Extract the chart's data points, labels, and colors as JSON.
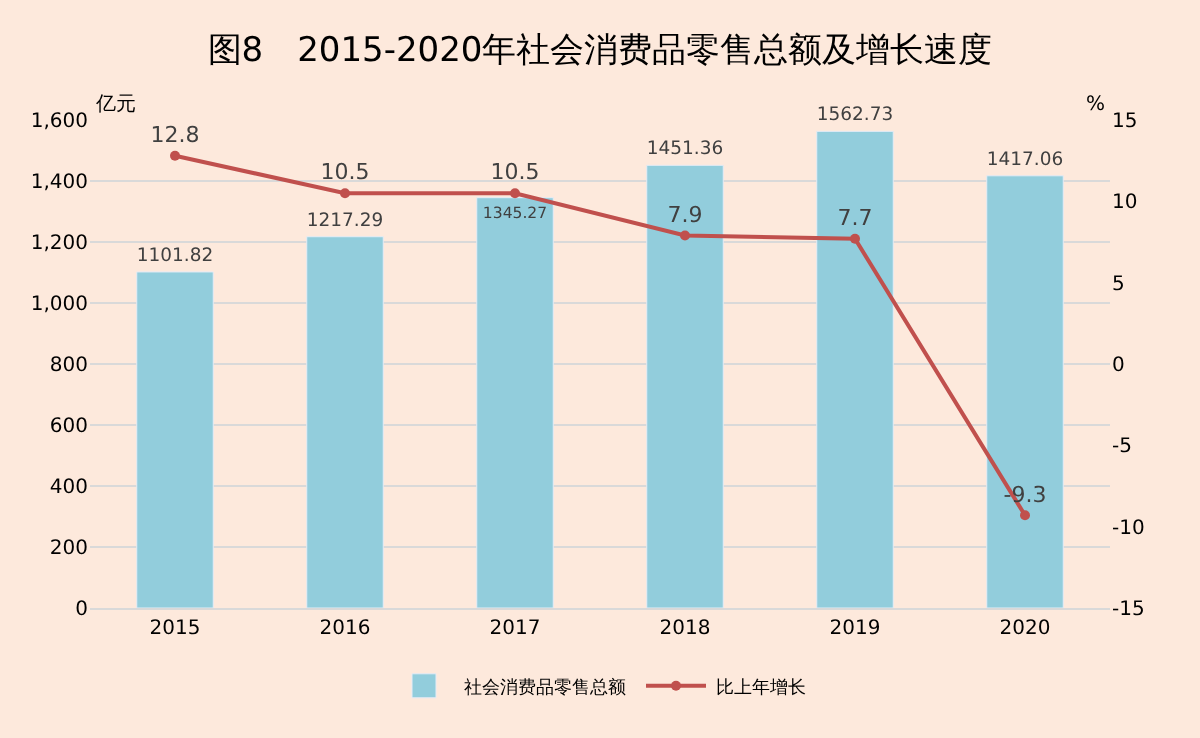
{
  "chart_data": {
    "type": "bar",
    "title": "图8　2015-2020年社会消费品零售总额及增长速度",
    "ylabel": "亿元",
    "y2label": "%",
    "categories": [
      "2015",
      "2016",
      "2017",
      "2018",
      "2019",
      "2020"
    ],
    "series": [
      {
        "name": "社会消费品零售总额",
        "color": "#92cddc",
        "values": [
          1101.82,
          1217.29,
          1345.27,
          1451.36,
          1562.73,
          1417.06
        ]
      },
      {
        "name": "比上年增长",
        "type": "line",
        "axis": "y2",
        "color": "#c0504d",
        "marker": "circle",
        "values": [
          12.8,
          10.5,
          10.5,
          7.9,
          7.7,
          -9.3
        ]
      }
    ],
    "data_labels": true,
    "ylim": [
      0,
      1600
    ],
    "yticks": [
      {
        "value": 0,
        "label": "0"
      },
      {
        "value": 200,
        "label": "200"
      },
      {
        "value": 400,
        "label": "400"
      },
      {
        "value": 600,
        "label": "600"
      },
      {
        "value": 800,
        "label": "800"
      },
      {
        "value": 1000,
        "label": "1,000"
      },
      {
        "value": 1200,
        "label": "1,200"
      },
      {
        "value": 1400,
        "label": "1,400"
      },
      {
        "value": 1600,
        "label": "1,600"
      }
    ],
    "y2lim": [
      -15,
      15
    ],
    "y2ticks": [
      -15,
      -10,
      -5,
      0,
      5,
      10,
      15
    ],
    "grid": "y",
    "legend": "bottom"
  }
}
